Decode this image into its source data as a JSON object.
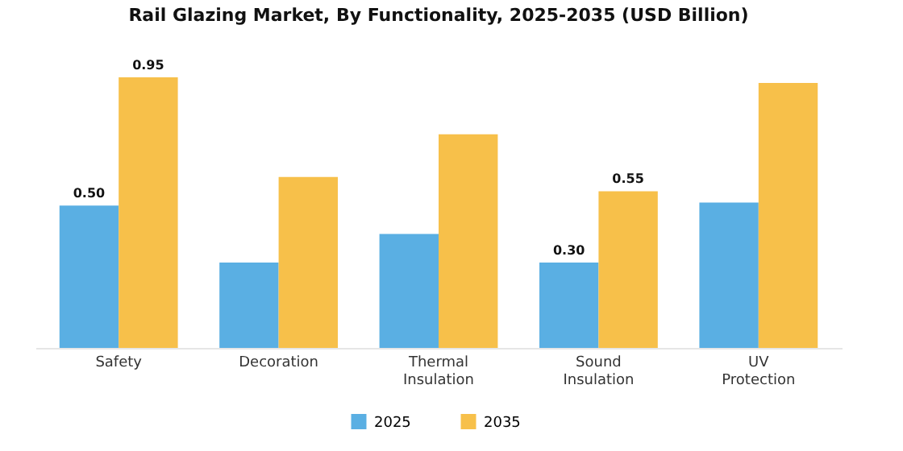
{
  "chart_data": {
    "type": "bar",
    "title": "Rail Glazing Market, By Functionality, 2025-2035 (USD Billion)",
    "categories": [
      "Safety",
      "Decoration",
      "Thermal Insulation",
      "Sound Insulation",
      "UV Protection"
    ],
    "series": [
      {
        "name": "2025",
        "color": "#5aafe3",
        "values": [
          0.5,
          0.3,
          0.4,
          0.3,
          0.51
        ],
        "value_labels": [
          "0.50",
          null,
          null,
          "0.30",
          null
        ]
      },
      {
        "name": "2035",
        "color": "#f7c04a",
        "values": [
          0.95,
          0.6,
          0.75,
          0.55,
          0.93
        ],
        "value_labels": [
          "0.95",
          null,
          null,
          "0.55",
          null
        ]
      }
    ],
    "legend": "bottom",
    "grid": false
  }
}
